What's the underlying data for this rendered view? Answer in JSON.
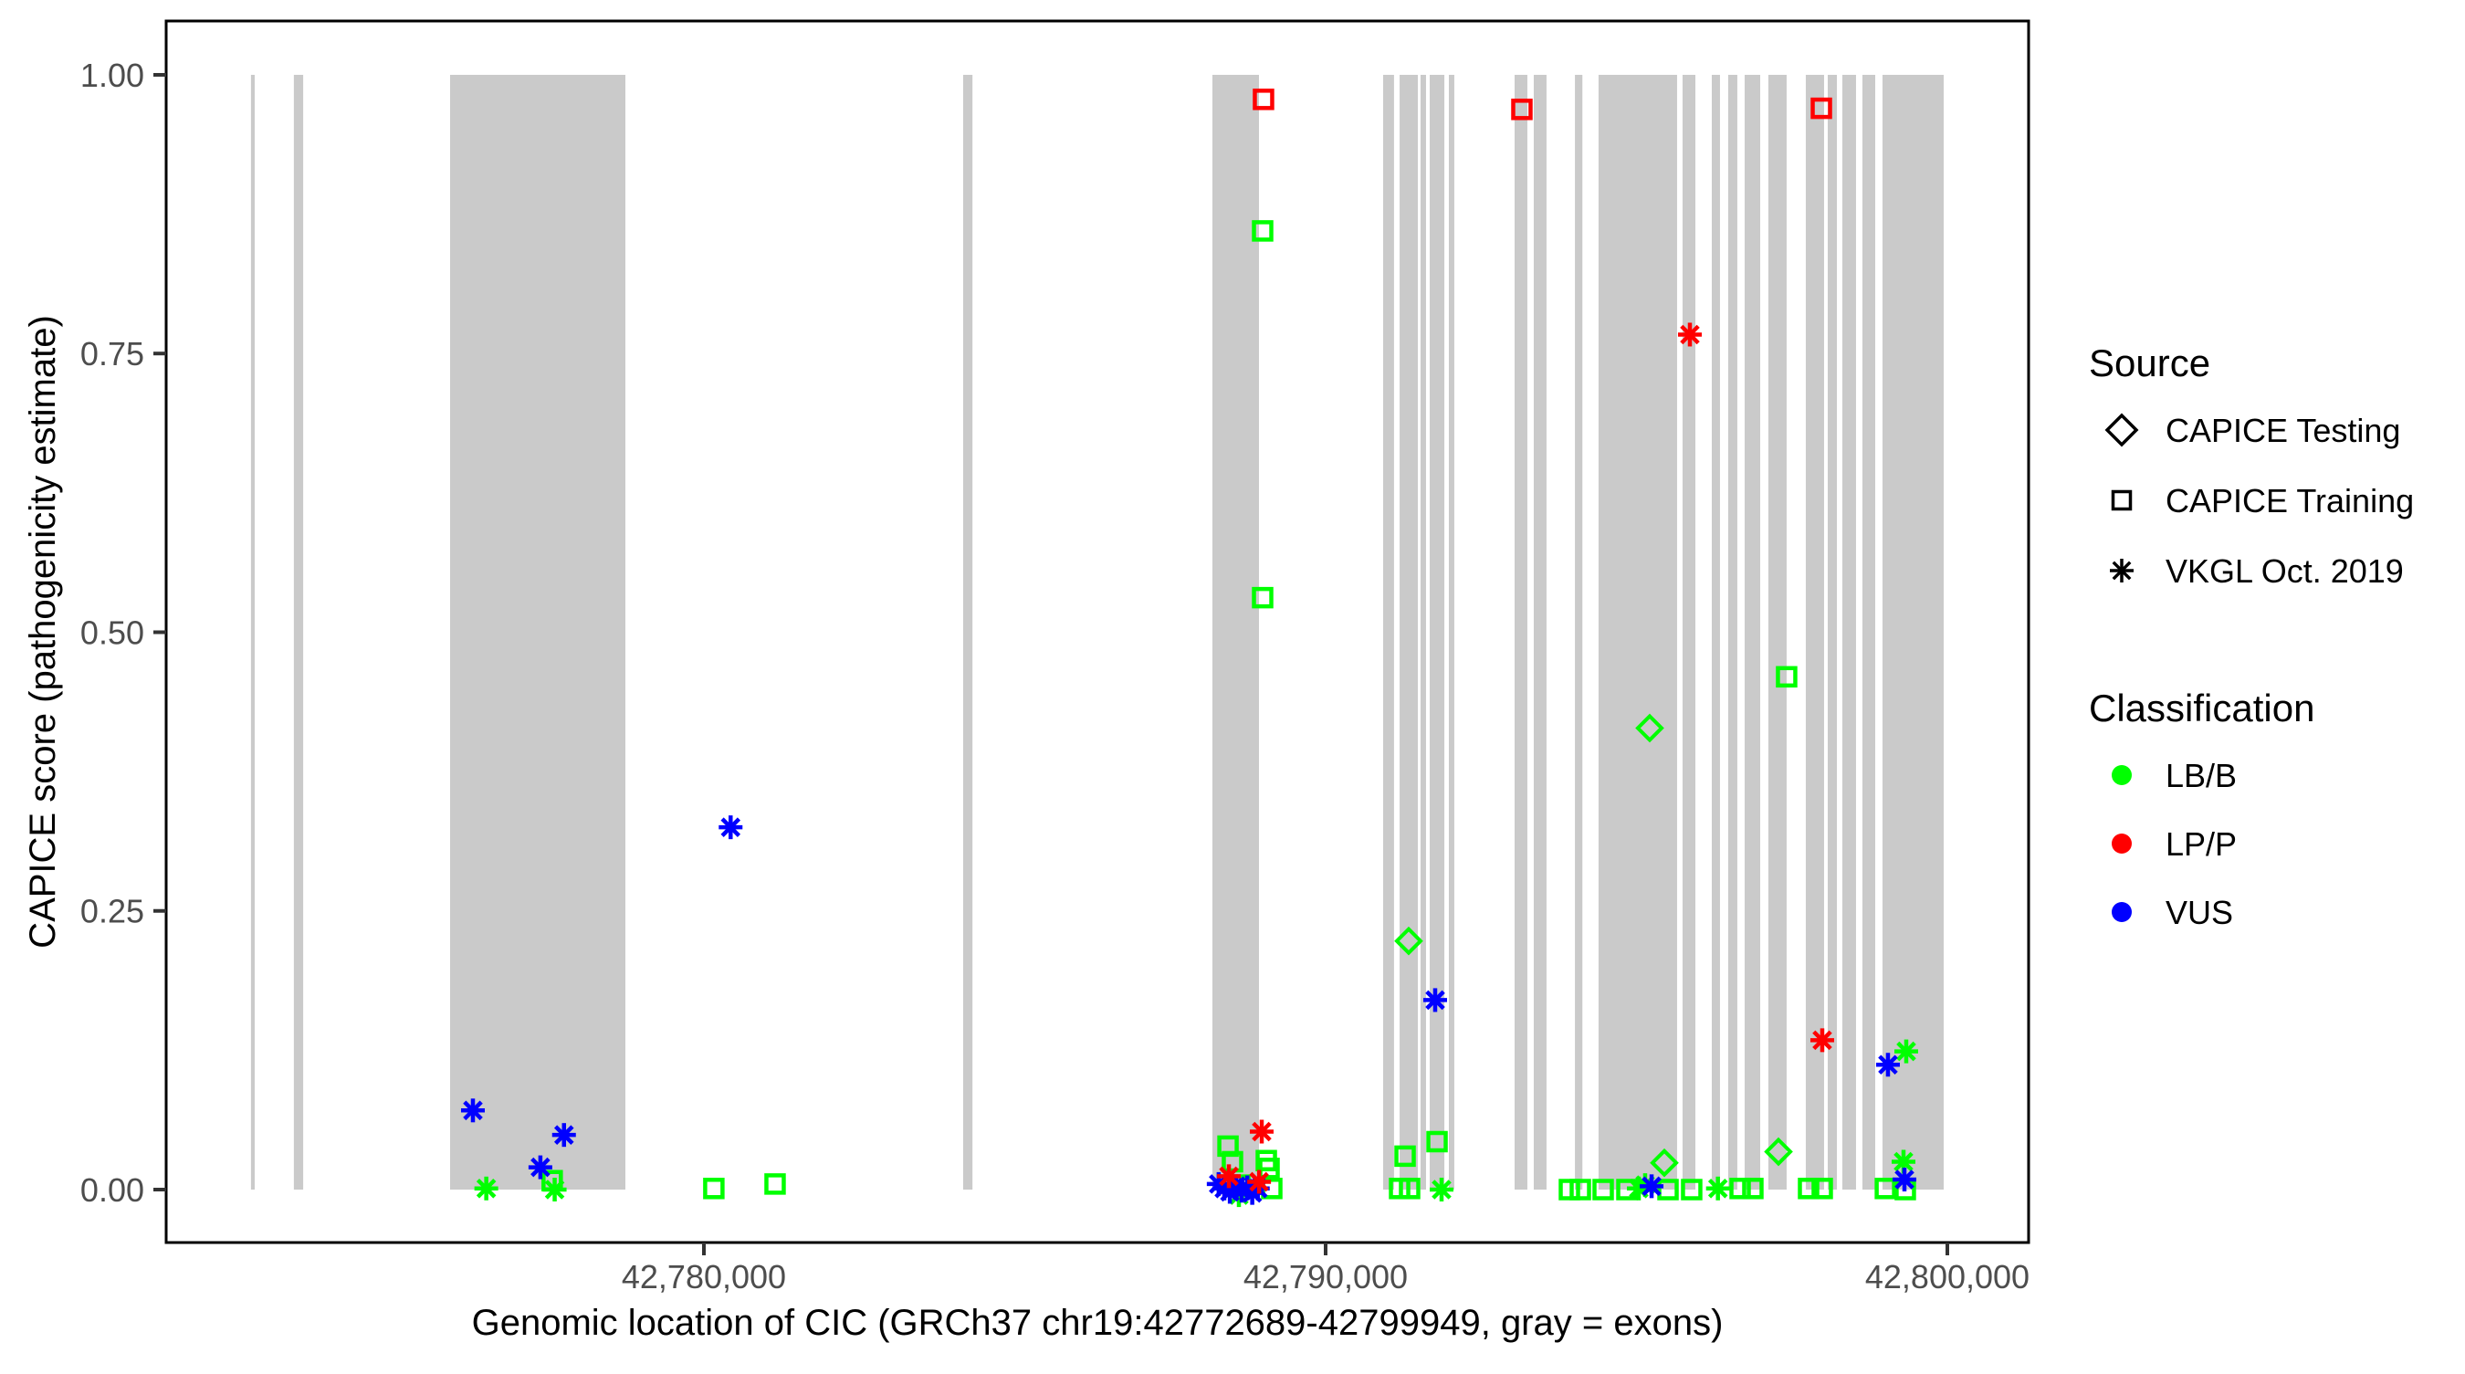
{
  "chart_data": {
    "type": "scatter",
    "title": "",
    "xlabel": "Genomic location of CIC (GRCh37 chr19:42772689-42799949, gray = exons)",
    "ylabel": "CAPICE score (pathogenicity estimate)",
    "x_domain": [
      42771351,
      42801307
    ],
    "y_domain": [
      -0.0475,
      1.0483
    ],
    "grid": false,
    "x_ticks": [
      {
        "value": 42780000,
        "label": "42,780,000"
      },
      {
        "value": 42790000,
        "label": "42,790,000"
      },
      {
        "value": 42800000,
        "label": "42,800,000"
      }
    ],
    "y_ticks": [
      {
        "value": 0.0,
        "label": "0.00"
      },
      {
        "value": 0.25,
        "label": "0.25"
      },
      {
        "value": 0.5,
        "label": "0.50"
      },
      {
        "value": 0.75,
        "label": "0.75"
      },
      {
        "value": 1.0,
        "label": "1.00"
      }
    ],
    "exon_color": "#CACACA",
    "exon_band_y": [
      0,
      1
    ],
    "exons": [
      [
        42772715,
        42772775
      ],
      [
        42773405,
        42773555
      ],
      [
        42775918,
        42778737
      ],
      [
        42784170,
        42784320
      ],
      [
        42788179,
        42788928
      ],
      [
        42790925,
        42791100
      ],
      [
        42791190,
        42791483
      ],
      [
        42791527,
        42791615
      ],
      [
        42791674,
        42791910
      ],
      [
        42791982,
        42792070
      ],
      [
        42793040,
        42793245
      ],
      [
        42793348,
        42793553
      ],
      [
        42794010,
        42794130
      ],
      [
        42794390,
        42795653
      ],
      [
        42795741,
        42795947
      ],
      [
        42796211,
        42796343
      ],
      [
        42796475,
        42796622
      ],
      [
        42796740,
        42796990
      ],
      [
        42797121,
        42797415
      ],
      [
        42797723,
        42798017
      ],
      [
        42798076,
        42798223
      ],
      [
        42798311,
        42798531
      ],
      [
        42798634,
        42798840
      ],
      [
        42798957,
        42799941
      ]
    ],
    "shape_by_source": {
      "CAPICE Testing": "diamond",
      "CAPICE Training": "square",
      "VKGL Oct. 2019": "asterisk"
    },
    "color_by_classification": {
      "LB/B": "#00FF00",
      "LP/P": "#FF0000",
      "VUS": "#0000FF"
    },
    "point_format": [
      "x",
      "y",
      "source",
      "classification"
    ],
    "points": [
      [
        42777560,
        0.008,
        "CAPICE Training",
        "LB/B"
      ],
      [
        42780160,
        0.001,
        "CAPICE Training",
        "LB/B"
      ],
      [
        42781145,
        0.005,
        "CAPICE Training",
        "LB/B"
      ],
      [
        42788430,
        0.039,
        "CAPICE Training",
        "LB/B"
      ],
      [
        42788502,
        0.025,
        "CAPICE Training",
        "LB/B"
      ],
      [
        42788620,
        0.004,
        "CAPICE Training",
        "LB/B"
      ],
      [
        42788987,
        0.86,
        "CAPICE Training",
        "LB/B"
      ],
      [
        42788987,
        0.531,
        "CAPICE Training",
        "LB/B"
      ],
      [
        42789046,
        0.026,
        "CAPICE Training",
        "LB/B"
      ],
      [
        42789090,
        0.019,
        "CAPICE Training",
        "LB/B"
      ],
      [
        42789134,
        0.001,
        "CAPICE Training",
        "LB/B"
      ],
      [
        42791190,
        0.001,
        "CAPICE Training",
        "LB/B"
      ],
      [
        42791278,
        0.03,
        "CAPICE Training",
        "LB/B"
      ],
      [
        42791351,
        0.001,
        "CAPICE Training",
        "LB/B"
      ],
      [
        42791792,
        0.043,
        "CAPICE Training",
        "LB/B"
      ],
      [
        42793921,
        0.0,
        "CAPICE Training",
        "LB/B"
      ],
      [
        42794097,
        0.0,
        "CAPICE Training",
        "LB/B"
      ],
      [
        42794464,
        0.0,
        "CAPICE Training",
        "LB/B"
      ],
      [
        42794846,
        0.0,
        "CAPICE Training",
        "LB/B"
      ],
      [
        42795507,
        0.0,
        "CAPICE Training",
        "LB/B"
      ],
      [
        42795888,
        0.0,
        "CAPICE Training",
        "LB/B"
      ],
      [
        42796667,
        0.001,
        "CAPICE Training",
        "LB/B"
      ],
      [
        42796872,
        0.001,
        "CAPICE Training",
        "LB/B"
      ],
      [
        42797415,
        0.46,
        "CAPICE Training",
        "LB/B"
      ],
      [
        42797768,
        0.001,
        "CAPICE Training",
        "LB/B"
      ],
      [
        42797988,
        0.001,
        "CAPICE Training",
        "LB/B"
      ],
      [
        42799003,
        0.001,
        "CAPICE Training",
        "LB/B"
      ],
      [
        42799324,
        0.0,
        "CAPICE Training",
        "LB/B"
      ],
      [
        42791336,
        0.223,
        "CAPICE Testing",
        "LB/B"
      ],
      [
        42795213,
        0.414,
        "CAPICE Testing",
        "LB/B"
      ],
      [
        42795448,
        0.024,
        "CAPICE Testing",
        "LB/B"
      ],
      [
        42797284,
        0.034,
        "CAPICE Testing",
        "LB/B"
      ],
      [
        42776500,
        0.001,
        "VKGL Oct. 2019",
        "LB/B"
      ],
      [
        42777600,
        0.0,
        "VKGL Oct. 2019",
        "LB/B"
      ],
      [
        42788605,
        -0.005,
        "VKGL Oct. 2019",
        "LB/B"
      ],
      [
        42791865,
        0.0,
        "VKGL Oct. 2019",
        "LB/B"
      ],
      [
        42795037,
        0.001,
        "VKGL Oct. 2019",
        "LB/B"
      ],
      [
        42795139,
        0.004,
        "VKGL Oct. 2019",
        "LB/B"
      ],
      [
        42796310,
        0.001,
        "VKGL Oct. 2019",
        "LB/B"
      ],
      [
        42799295,
        0.025,
        "VKGL Oct. 2019",
        "LB/B"
      ],
      [
        42799339,
        0.124,
        "VKGL Oct. 2019",
        "LB/B"
      ],
      [
        42776285,
        0.071,
        "VKGL Oct. 2019",
        "VUS"
      ],
      [
        42777370,
        0.02,
        "VKGL Oct. 2019",
        "VUS"
      ],
      [
        42777750,
        0.049,
        "VKGL Oct. 2019",
        "VUS"
      ],
      [
        42780430,
        0.325,
        "VKGL Oct. 2019",
        "VUS"
      ],
      [
        42788280,
        0.005,
        "VKGL Oct. 2019",
        "VUS"
      ],
      [
        42788370,
        0.001,
        "VKGL Oct. 2019",
        "VUS"
      ],
      [
        42788460,
        -0.002,
        "VKGL Oct. 2019",
        "VUS"
      ],
      [
        42788560,
        0.003,
        "VKGL Oct. 2019",
        "VUS"
      ],
      [
        42788650,
        -0.001,
        "VKGL Oct. 2019",
        "VUS"
      ],
      [
        42788740,
        0.002,
        "VKGL Oct. 2019",
        "VUS"
      ],
      [
        42788820,
        -0.003,
        "VKGL Oct. 2019",
        "VUS"
      ],
      [
        42788910,
        0.001,
        "VKGL Oct. 2019",
        "VUS"
      ],
      [
        42791762,
        0.17,
        "VKGL Oct. 2019",
        "VUS"
      ],
      [
        42795243,
        0.003,
        "VKGL Oct. 2019",
        "VUS"
      ],
      [
        42799045,
        0.112,
        "VKGL Oct. 2019",
        "VUS"
      ],
      [
        42799310,
        0.009,
        "VKGL Oct. 2019",
        "VUS"
      ],
      [
        42788444,
        0.012,
        "VKGL Oct. 2019",
        "LP/P"
      ],
      [
        42788930,
        0.007,
        "VKGL Oct. 2019",
        "LP/P"
      ],
      [
        42788972,
        0.052,
        "VKGL Oct. 2019",
        "LP/P"
      ],
      [
        42795859,
        0.767,
        "VKGL Oct. 2019",
        "LP/P"
      ],
      [
        42797988,
        0.134,
        "VKGL Oct. 2019",
        "LP/P"
      ],
      [
        42789001,
        0.978,
        "CAPICE Training",
        "LP/P"
      ],
      [
        42793157,
        0.969,
        "CAPICE Training",
        "LP/P"
      ],
      [
        42797974,
        0.97,
        "CAPICE Training",
        "LP/P"
      ]
    ],
    "legend": {
      "source": {
        "title": "Source",
        "items": [
          {
            "label": "CAPICE Testing",
            "shape": "diamond"
          },
          {
            "label": "CAPICE Training",
            "shape": "square"
          },
          {
            "label": "VKGL Oct. 2019",
            "shape": "asterisk"
          }
        ]
      },
      "classification": {
        "title": "Classification",
        "items": [
          {
            "label": "LB/B",
            "color": "#00FF00"
          },
          {
            "label": "LP/P",
            "color": "#FF0000"
          },
          {
            "label": "VUS",
            "color": "#0000FF"
          }
        ]
      }
    }
  }
}
